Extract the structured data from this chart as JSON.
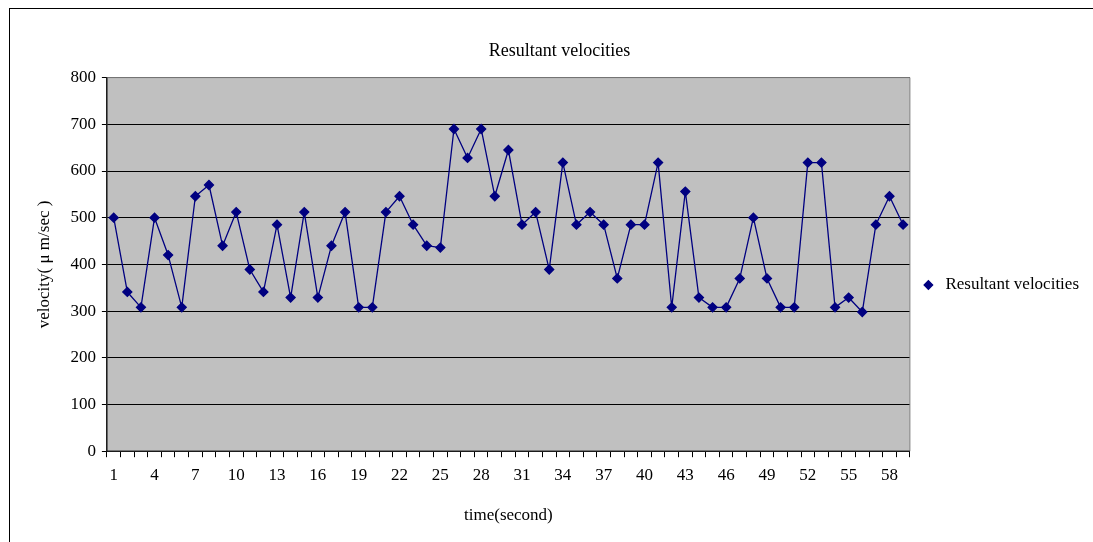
{
  "chart_data": {
    "type": "line",
    "title": "Resultant velocities",
    "xlabel": "time(second)",
    "ylabel": "velocity( μ m/sec )",
    "categories": [
      "1",
      null,
      null,
      "4",
      null,
      null,
      "7",
      null,
      null,
      "10",
      null,
      null,
      "13",
      null,
      null,
      "16",
      null,
      null,
      "19",
      null,
      null,
      "22",
      null,
      null,
      "25",
      null,
      null,
      "28",
      null,
      null,
      "31",
      null,
      null,
      "34",
      null,
      null,
      "37",
      null,
      null,
      "40",
      null,
      null,
      "43",
      null,
      null,
      "46",
      null,
      null,
      "49",
      null,
      null,
      "52",
      null,
      null,
      "55",
      null,
      null,
      "58",
      null
    ],
    "series": [
      {
        "name": "Resultant velocities",
        "color": "#000080",
        "values": [
          500,
          341,
          308,
          500,
          420,
          308,
          546,
          570,
          440,
          512,
          389,
          341,
          485,
          329,
          512,
          329,
          440,
          512,
          308,
          308,
          512,
          546,
          485,
          440,
          436,
          690,
          628,
          690,
          546,
          645,
          485,
          512,
          389,
          618,
          485,
          512,
          485,
          370,
          485,
          485,
          618,
          308,
          556,
          329,
          308,
          308,
          370,
          500,
          370,
          308,
          308,
          618,
          618,
          308,
          329,
          298,
          485,
          546,
          485
        ]
      }
    ],
    "ylim": [
      0,
      800
    ],
    "yticks": [
      0,
      100,
      200,
      300,
      400,
      500,
      600,
      700,
      800
    ],
    "grid": "y",
    "legend": "right",
    "marker": "diamond",
    "line_style": "solid"
  }
}
